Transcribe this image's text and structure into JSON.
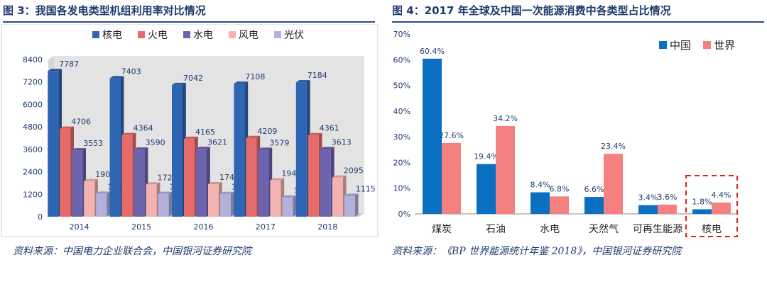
{
  "left": {
    "title": "图 3：我国各发电类型机组利用率对比情况",
    "source": "资料来源：中国电力企业联合会，中国银河证券研究院"
  },
  "right": {
    "title": "图 4：2017 年全球及中国一次能源消费中各类型占比情况",
    "source": "资料来源：《BP 世界能源统计年鉴 2018》，中国银河证券研究院"
  },
  "chart_data": [
    {
      "type": "bar",
      "title": "图 3：我国各发电类型机组利用率对比情况",
      "categories": [
        "2014",
        "2015",
        "2016",
        "2017",
        "2018"
      ],
      "series": [
        {
          "name": "核电",
          "values": [
            7787,
            7403,
            7042,
            7108,
            7184
          ],
          "color": "#2f66b3"
        },
        {
          "name": "火电",
          "values": [
            4706,
            4364,
            4165,
            4209,
            4361
          ],
          "color": "#e66b6b"
        },
        {
          "name": "水电",
          "values": [
            3553,
            3590,
            3621,
            3579,
            3613
          ],
          "color": "#6d63ae"
        },
        {
          "name": "风电",
          "values": [
            1900,
            1724,
            1742,
            1948,
            2095
          ],
          "color": "#f4b3b3"
        },
        {
          "name": "光伏",
          "values": [
            1235,
            1225,
            1222,
            1025,
            1115
          ],
          "color": "#b3b0db"
        }
      ],
      "yticks": [
        0,
        1200,
        2400,
        3600,
        4800,
        6000,
        7200,
        8400
      ],
      "ylim": [
        0,
        8400
      ],
      "legend": "top"
    },
    {
      "type": "bar",
      "title": "图 4：2017 年全球及中国一次能源消费中各类型占比情况",
      "categories": [
        "煤炭",
        "石油",
        "水电",
        "天然气",
        "可再生能源",
        "核电"
      ],
      "series": [
        {
          "name": "中国",
          "values": [
            60.4,
            19.4,
            8.4,
            6.6,
            3.4,
            1.8
          ],
          "labels": [
            "60.4%",
            "19.4%",
            "8.4%",
            "6.6%",
            "3.4%",
            "1.8%"
          ],
          "color": "#0b6fc2"
        },
        {
          "name": "世界",
          "values": [
            27.6,
            34.2,
            6.8,
            23.4,
            3.6,
            4.4
          ],
          "labels": [
            "27.6%",
            "34.2%",
            "6.8%",
            "23.4%",
            "3.6%",
            "4.4%"
          ],
          "color": "#f58080"
        }
      ],
      "yticks": [
        "0%",
        "10%",
        "20%",
        "30%",
        "40%",
        "50%",
        "60%",
        "70%"
      ],
      "ylim": [
        0,
        70
      ],
      "legend": "top-right",
      "highlight": "核电"
    }
  ]
}
